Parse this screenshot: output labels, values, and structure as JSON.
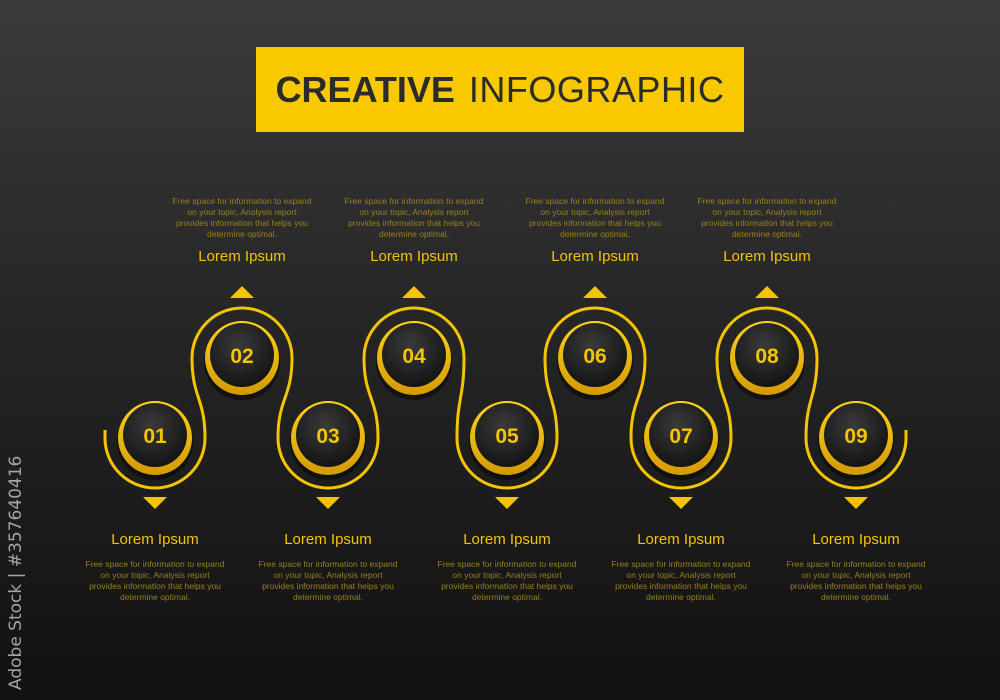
{
  "title": {
    "bold": "CREATIVE",
    "light": "INFOGRAPHIC",
    "background": "#f8c800"
  },
  "accent": "#f5c400",
  "steps": [
    {
      "number": "01",
      "label": "Lorem Ipsum",
      "description": "Free space for information to expand on your topic, Analysis report provides information that helps you determine optimal.",
      "position": "bottom"
    },
    {
      "number": "02",
      "label": "Lorem Ipsum",
      "description": "Free space for information to expand on your topic, Analysis report provides information that helps you determine optimal.",
      "position": "top"
    },
    {
      "number": "03",
      "label": "Lorem Ipsum",
      "description": "Free space for information to expand on your topic, Analysis report provides information that helps you determine optimal.",
      "position": "bottom"
    },
    {
      "number": "04",
      "label": "Lorem Ipsum",
      "description": "Free space for information to expand on your topic, Analysis report provides information that helps you determine optimal.",
      "position": "top"
    },
    {
      "number": "05",
      "label": "Lorem Ipsum",
      "description": "Free space for information to expand on your topic, Analysis report provides information that helps you determine optimal.",
      "position": "bottom"
    },
    {
      "number": "06",
      "label": "Lorem Ipsum",
      "description": "Free space for information to expand on your topic, Analysis report provides information that helps you determine optimal.",
      "position": "top"
    },
    {
      "number": "07",
      "label": "Lorem Ipsum",
      "description": "Free space for information to expand on your topic, Analysis report provides information that helps you determine optimal.",
      "position": "bottom"
    },
    {
      "number": "08",
      "label": "Lorem Ipsum",
      "description": "Free space for information to expand on your topic, Analysis report provides information that helps you determine optimal.",
      "position": "top"
    },
    {
      "number": "09",
      "label": "Lorem Ipsum",
      "description": "Free space for information to expand on your topic, Analysis report provides information that helps you determine optimal.",
      "position": "bottom"
    }
  ],
  "watermark": "Adobe Stock | #357640416"
}
